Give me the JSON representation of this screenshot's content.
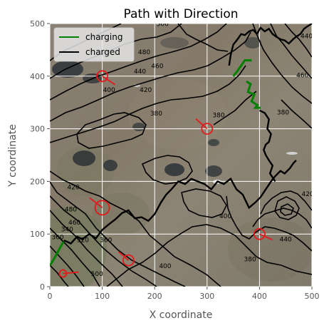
{
  "chart_data": {
    "type": "map",
    "title": "Path with Direction",
    "xlabel": "X coordinate",
    "ylabel": "Y coordinate",
    "xlim": [
      0,
      500
    ],
    "ylim": [
      0,
      500
    ],
    "x_ticks": [
      0,
      100,
      200,
      300,
      400,
      500
    ],
    "y_ticks": [
      0,
      100,
      200,
      300,
      400,
      500
    ],
    "grid": true,
    "legend_position": "top-left",
    "legend": [
      {
        "label": "charging",
        "color": "#008000"
      },
      {
        "label": "charged",
        "color": "#000000"
      }
    ],
    "colors": {
      "charging": "#008000",
      "charged": "#000000",
      "markers": "#e31a1c",
      "grid": "#ffffff",
      "frame_bg": "#e5e5e5"
    },
    "background": "satellite-terrain",
    "contour_labels": [
      {
        "text": "500",
        "x": 215,
        "y": 495
      },
      {
        "text": "480",
        "x": 180,
        "y": 442
      },
      {
        "text": "460",
        "x": 205,
        "y": 415
      },
      {
        "text": "440",
        "x": 172,
        "y": 405
      },
      {
        "text": "420",
        "x": 183,
        "y": 370
      },
      {
        "text": "400",
        "x": 113,
        "y": 370
      },
      {
        "text": "380",
        "x": 203,
        "y": 325
      },
      {
        "text": "380",
        "x": 322,
        "y": 322
      },
      {
        "text": "380",
        "x": 445,
        "y": 327
      },
      {
        "text": "380",
        "x": 382,
        "y": 48
      },
      {
        "text": "400",
        "x": 335,
        "y": 130
      },
      {
        "text": "400",
        "x": 220,
        "y": 35
      },
      {
        "text": "420",
        "x": 45,
        "y": 185
      },
      {
        "text": "420",
        "x": 492,
        "y": 172
      },
      {
        "text": "440",
        "x": 490,
        "y": 472
      },
      {
        "text": "440",
        "x": 450,
        "y": 86
      },
      {
        "text": "460",
        "x": 482,
        "y": 398
      },
      {
        "text": "460",
        "x": 47,
        "y": 118
      },
      {
        "text": "480",
        "x": 40,
        "y": 143
      },
      {
        "text": "500",
        "x": 90,
        "y": 20
      },
      {
        "text": "360",
        "x": 107,
        "y": 85
      },
      {
        "text": "360",
        "x": 15,
        "y": 90
      },
      {
        "text": "340",
        "x": 33,
        "y": 105
      },
      {
        "text": "320",
        "x": 63,
        "y": 85
      }
    ],
    "series": [
      {
        "name": "charging",
        "segments": [
          {
            "x": [
              0,
              5,
              12,
              20,
              26
            ],
            "y": [
              40,
              48,
              60,
              75,
              85
            ]
          },
          {
            "x": [
              350,
              358,
              372,
              385
            ],
            "y": [
              400,
              410,
              430,
              430
            ]
          },
          {
            "x": [
              375,
              383,
              378,
              390,
              385,
              396,
              392,
              402
            ],
            "y": [
              390,
              385,
              370,
              365,
              352,
              345,
              340,
              340
            ]
          }
        ]
      },
      {
        "name": "charged",
        "x": [
          27,
          40,
          52,
          62,
          75,
          88,
          100,
          112,
          125,
          138,
          150,
          162,
          175,
          188,
          200,
          212,
          222,
          232,
          245,
          258,
          270,
          282,
          295,
          308,
          320,
          332,
          345,
          356,
          368,
          380,
          392,
          402,
          412,
          422,
          430,
          440,
          448,
          458,
          465,
          470
        ],
        "y": [
          88,
          82,
          95,
          90,
          100,
          92,
          108,
          118,
          128,
          140,
          145,
          130,
          132,
          125,
          138,
          160,
          175,
          185,
          200,
          195,
          205,
          200,
          195,
          185,
          200,
          195,
          205,
          185,
          175,
          150,
          160,
          170,
          185,
          200,
          210,
          220,
          215,
          225,
          235,
          240
        ]
      },
      {
        "name": "charged",
        "x": [
          342,
          345,
          350,
          358,
          365,
          372,
          380,
          388,
          395,
          402,
          410,
          418,
          425,
          432,
          440,
          448,
          456,
          464,
          470,
          478,
          485,
          492,
          500
        ],
        "y": [
          420,
          440,
          460,
          470,
          480,
          478,
          485,
          488,
          480,
          492,
          485,
          490,
          480,
          475,
          470,
          468,
          462,
          470,
          475,
          480,
          490,
          495,
          500
        ]
      },
      {
        "name": "charged",
        "x": [
          400,
          410,
          418,
          415,
          422,
          418,
          412,
          408,
          412,
          418,
          425,
          420,
          430
        ],
        "y": [
          335,
          330,
          318,
          300,
          290,
          275,
          270,
          260,
          250,
          240,
          230,
          215,
          200
        ]
      }
    ],
    "markers": [
      {
        "x": 100,
        "y": 400,
        "r": "medium",
        "dir_dx": 18,
        "dir_dy": -12
      },
      {
        "x": 300,
        "y": 300,
        "r": "medium",
        "dir_dx": -16,
        "dir_dy": 14
      },
      {
        "x": 100,
        "y": 150,
        "r": "large",
        "dir_dx": -18,
        "dir_dy": 14
      },
      {
        "x": 150,
        "y": 50,
        "r": "medium",
        "dir_dx": -14,
        "dir_dy": 12
      },
      {
        "x": 400,
        "y": 100,
        "r": "medium",
        "dir_dx": 18,
        "dir_dy": -8
      },
      {
        "x": 25,
        "y": 25,
        "r": "small",
        "dir_dx": 22,
        "dir_dy": 2
      }
    ]
  }
}
